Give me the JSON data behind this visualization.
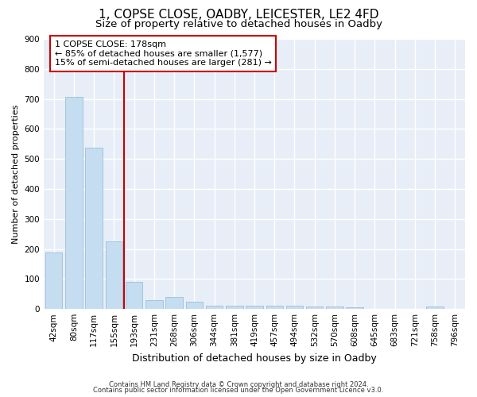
{
  "title1": "1, COPSE CLOSE, OADBY, LEICESTER, LE2 4FD",
  "title2": "Size of property relative to detached houses in Oadby",
  "xlabel": "Distribution of detached houses by size in Oadby",
  "ylabel": "Number of detached properties",
  "categories": [
    "42sqm",
    "80sqm",
    "117sqm",
    "155sqm",
    "193sqm",
    "231sqm",
    "268sqm",
    "306sqm",
    "344sqm",
    "381sqm",
    "419sqm",
    "457sqm",
    "494sqm",
    "532sqm",
    "570sqm",
    "608sqm",
    "645sqm",
    "683sqm",
    "721sqm",
    "758sqm",
    "796sqm"
  ],
  "values": [
    188,
    707,
    538,
    225,
    90,
    30,
    40,
    25,
    12,
    10,
    10,
    10,
    10,
    8,
    8,
    6,
    0,
    0,
    0,
    8,
    0
  ],
  "bar_color": "#c5ddf0",
  "bar_edge_color": "#9bbfda",
  "vline_x": 4.0,
  "vline_color": "#cc0000",
  "annotation_line1": "1 COPSE CLOSE: 178sqm",
  "annotation_line2": "← 85% of detached houses are smaller (1,577)",
  "annotation_line3": "15% of semi-detached houses are larger (281) →",
  "annotation_box_edgecolor": "#cc0000",
  "ylim": [
    0,
    900
  ],
  "yticks": [
    0,
    100,
    200,
    300,
    400,
    500,
    600,
    700,
    800,
    900
  ],
  "footer1": "Contains HM Land Registry data © Crown copyright and database right 2024.",
  "footer2": "Contains public sector information licensed under the Open Government Licence v3.0.",
  "bg_color": "#e8eef8",
  "grid_color": "#ffffff",
  "title1_fontsize": 11,
  "title2_fontsize": 9.5,
  "xlabel_fontsize": 9,
  "ylabel_fontsize": 8,
  "tick_fontsize": 7.5,
  "footer_fontsize": 6,
  "ann_fontsize": 8
}
